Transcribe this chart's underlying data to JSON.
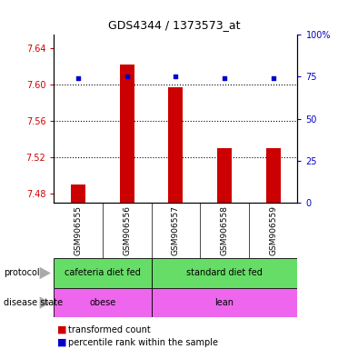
{
  "title": "GDS4344 / 1373573_at",
  "samples": [
    "GSM906555",
    "GSM906556",
    "GSM906557",
    "GSM906558",
    "GSM906559"
  ],
  "red_values": [
    7.49,
    7.622,
    7.597,
    7.53,
    7.53
  ],
  "blue_values": [
    74,
    75,
    75,
    74,
    74
  ],
  "ylim_left": [
    7.47,
    7.655
  ],
  "ylim_right": [
    0,
    100
  ],
  "yticks_left": [
    7.48,
    7.52,
    7.56,
    7.6,
    7.64
  ],
  "yticks_right": [
    0,
    25,
    50,
    75,
    100
  ],
  "ytick_labels_left": [
    "7.48",
    "7.52",
    "7.56",
    "7.60",
    "7.64"
  ],
  "ytick_labels_right": [
    "0",
    "25",
    "50",
    "75",
    "100%"
  ],
  "grid_lines": [
    7.52,
    7.56,
    7.6
  ],
  "bar_base": 7.47,
  "bar_width": 0.3,
  "protocol_color": "#66DD66",
  "disease_color": "#EE66EE",
  "label_gray": "#888888",
  "bar_color": "#CC0000",
  "dot_color": "#0000CC",
  "background_color": "#ffffff",
  "sample_bg": "#cccccc",
  "legend_red": "transformed count",
  "legend_blue": "percentile rank within the sample",
  "tick_color_left": "#CC0000",
  "tick_color_right": "#0000CC",
  "arrow_color": "#aaaaaa"
}
